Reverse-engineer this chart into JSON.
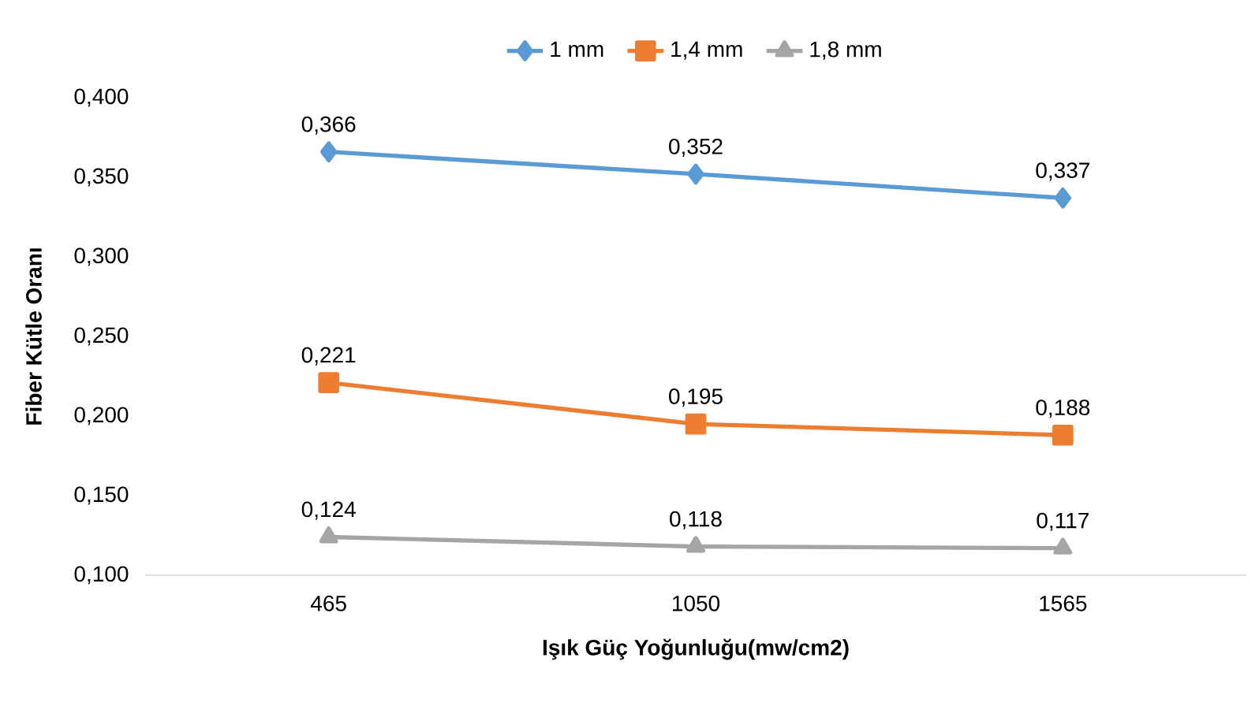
{
  "chart_data": {
    "type": "line",
    "xlabel": "Işık Güç Yoğunluğu(mw/cm2)",
    "ylabel": "Fiber Kütle Oranı",
    "categories": [
      "465",
      "1050",
      "1565"
    ],
    "series": [
      {
        "name": "1 mm",
        "color": "#5b9bd5",
        "marker": "diamond",
        "values": [
          0.366,
          0.352,
          0.337
        ],
        "value_labels": [
          "0,366",
          "0,352",
          "0,337"
        ]
      },
      {
        "name": "1,4 mm",
        "color": "#ed7d31",
        "marker": "square",
        "values": [
          0.221,
          0.195,
          0.188
        ],
        "value_labels": [
          "0,221",
          "0,195",
          "0,188"
        ]
      },
      {
        "name": "1,8 mm",
        "color": "#a5a5a5",
        "marker": "triangle",
        "values": [
          0.124,
          0.118,
          0.117
        ],
        "value_labels": [
          "0,124",
          "0,118",
          "0,117"
        ]
      }
    ],
    "ylim": [
      0.1,
      0.4
    ],
    "yticks": [
      {
        "value": 0.1,
        "label": "0,100"
      },
      {
        "value": 0.15,
        "label": "0,150"
      },
      {
        "value": 0.2,
        "label": "0,200"
      },
      {
        "value": 0.25,
        "label": "0,250"
      },
      {
        "value": 0.3,
        "label": "0,300"
      },
      {
        "value": 0.35,
        "label": "0,350"
      },
      {
        "value": 0.4,
        "label": "0,400"
      }
    ],
    "grid": false,
    "legend": "top",
    "line_style": "solid"
  }
}
